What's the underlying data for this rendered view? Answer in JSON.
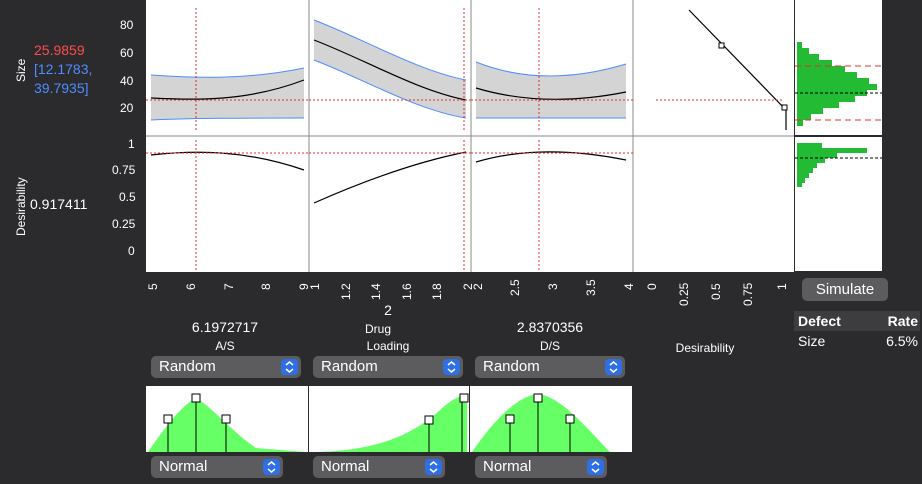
{
  "rows": {
    "size": {
      "label": "Size",
      "value": "25.9859",
      "ci_low": "[12.1783,",
      "ci_high": "39.7935]",
      "ticks": [
        "80",
        "60",
        "40",
        "20"
      ]
    },
    "desirability": {
      "label": "Desirability",
      "value": "0.917411",
      "ticks": [
        "1",
        "0.75",
        "0.5",
        "0.25",
        "0"
      ]
    }
  },
  "factors": [
    {
      "name": "A/S",
      "current": "6.1972717",
      "ticks": [
        "5",
        "6",
        "7",
        "8",
        "9"
      ],
      "random_label": "Random",
      "dist_label": "Normal"
    },
    {
      "name_line1": "Drug",
      "name_line2": "Loading",
      "current": "2",
      "ticks": [
        "1",
        "1.2",
        "1.4",
        "1.6",
        "1.8",
        "2"
      ],
      "random_label": "Random",
      "dist_label": "Normal"
    },
    {
      "name": "D/S",
      "current": "2.8370356",
      "ticks": [
        "2",
        "2.5",
        "3",
        "3.5",
        "4"
      ],
      "random_label": "Random",
      "dist_label": "Normal"
    },
    {
      "name": "Desirability",
      "ticks": [
        "0",
        "0.25",
        "0.5",
        "0.75",
        "1"
      ]
    }
  ],
  "simulate_label": "Simulate",
  "defect_table": {
    "headers": [
      "Defect",
      "Rate"
    ],
    "rows": [
      {
        "defect": "Size",
        "rate": "6.5%"
      }
    ]
  },
  "colors": {
    "accent_red": "#ff4b4b",
    "ci_blue": "#4f8cff",
    "hist_green": "#22bb33",
    "dist_green": "#66ff66"
  }
}
